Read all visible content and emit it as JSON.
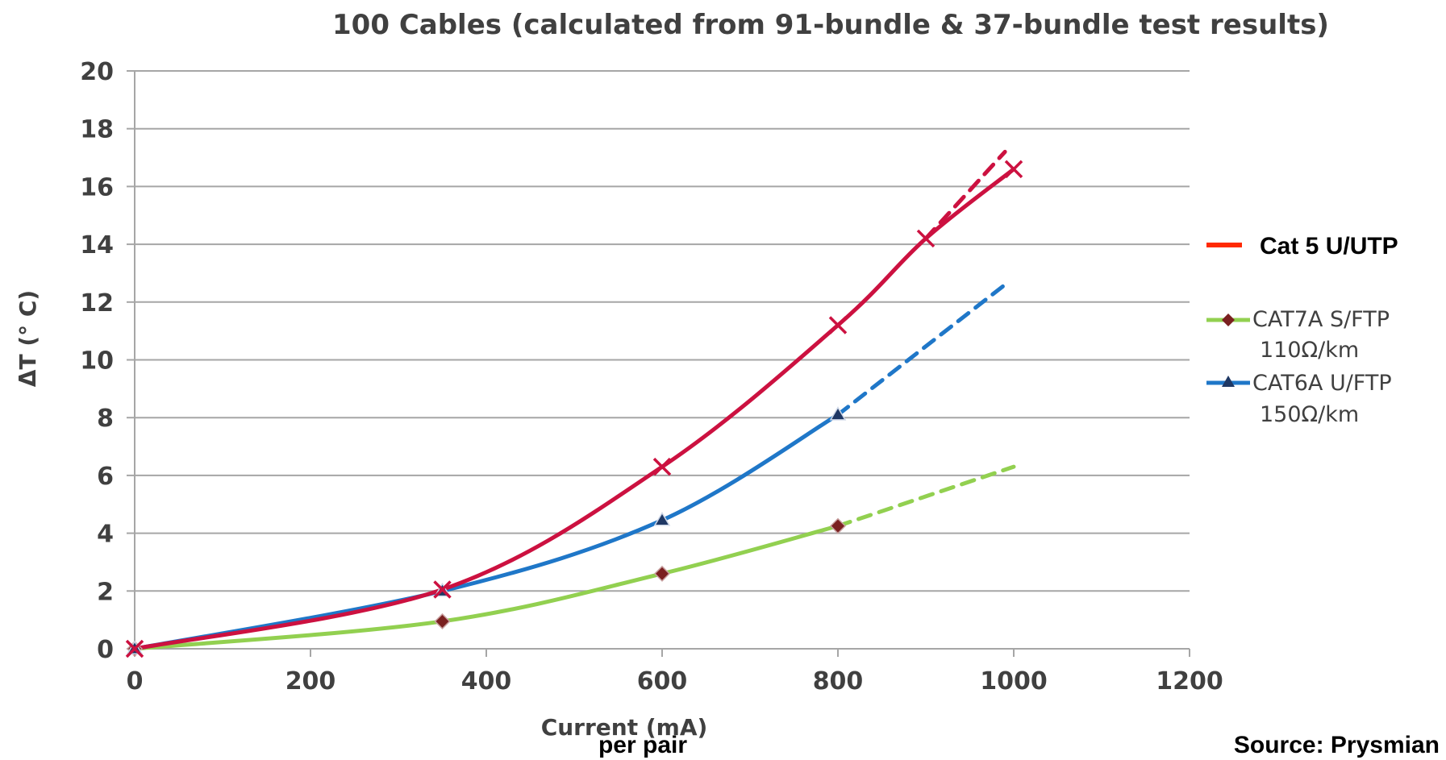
{
  "chart_data": {
    "type": "line",
    "title": "100 Cables (calculated from 91-bundle & 37-bundle test results)",
    "xlabel": "Current (mA)",
    "xlabel_sub": "per pair",
    "ylabel": "ΔT (° C)",
    "xlim": [
      0,
      1200
    ],
    "ylim": [
      0,
      20
    ],
    "xticks": [
      0,
      200,
      400,
      600,
      800,
      1000,
      1200
    ],
    "yticks": [
      0,
      2,
      4,
      6,
      8,
      10,
      12,
      14,
      16,
      18,
      20
    ],
    "grid": "horizontal",
    "legend_position": "right",
    "series": [
      {
        "name": "Cat 5 U/UTP",
        "color": "#cc1140",
        "marker": "x",
        "points": [
          [
            0,
            0
          ],
          [
            350,
            2.05
          ],
          [
            600,
            6.3
          ],
          [
            800,
            11.2
          ],
          [
            900,
            14.2
          ],
          [
            1000,
            16.6
          ]
        ],
        "extrapolated": [
          [
            900,
            14.2
          ],
          [
            990,
            17.2
          ]
        ]
      },
      {
        "name": "CAT7A S/FTP",
        "name_line2": "110Ω/km",
        "color": "#92d050",
        "marker_color": "#7a2020",
        "marker": "diamond",
        "points": [
          [
            0,
            0
          ],
          [
            350,
            0.95
          ],
          [
            600,
            2.6
          ],
          [
            800,
            4.25
          ]
        ],
        "extrapolated": [
          [
            800,
            4.25
          ],
          [
            1000,
            6.3
          ]
        ]
      },
      {
        "name": "CAT6A U/FTP",
        "name_line2": "150Ω/km",
        "color": "#1f77c8",
        "marker_color": "#1f3864",
        "marker": "triangle",
        "points": [
          [
            0,
            0
          ],
          [
            350,
            2.0
          ],
          [
            600,
            4.45
          ],
          [
            800,
            8.1
          ]
        ],
        "extrapolated": [
          [
            800,
            8.1
          ],
          [
            990,
            12.6
          ]
        ]
      }
    ]
  },
  "source_note": "Source: Prysmian",
  "legend_cat5_color": "#ff2a00"
}
